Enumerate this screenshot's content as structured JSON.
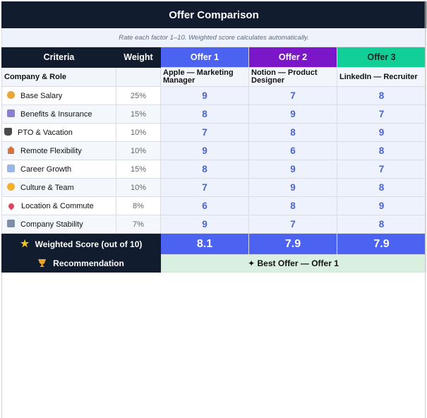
{
  "title": "Offer Comparison",
  "subtitle": "Rate each factor 1–10. Weighted score calculates automatically.",
  "headers": {
    "criteria": "Criteria",
    "weight": "Weight",
    "offers": [
      "Offer 1",
      "Offer 2",
      "Offer 3"
    ]
  },
  "company_role": {
    "label": "Company & Role",
    "values": [
      "Apple — Marketing Manager",
      "Notion — Product Designer",
      "LinkedIn — Recruiter"
    ]
  },
  "factors": [
    {
      "icon": "money-bag-icon",
      "label": "Base Salary",
      "weight": "25%",
      "scores": [
        "9",
        "7",
        "8"
      ]
    },
    {
      "icon": "receipt-icon",
      "label": "Benefits & Insurance",
      "weight": "15%",
      "scores": [
        "8",
        "9",
        "7"
      ]
    },
    {
      "icon": "beach-icon",
      "label": "PTO & Vacation",
      "weight": "10%",
      "scores": [
        "7",
        "8",
        "9"
      ]
    },
    {
      "icon": "house-icon",
      "label": "Remote Flexibility",
      "weight": "10%",
      "scores": [
        "9",
        "6",
        "8"
      ]
    },
    {
      "icon": "chart-up-icon",
      "label": "Career Growth",
      "weight": "15%",
      "scores": [
        "8",
        "9",
        "7"
      ]
    },
    {
      "icon": "handshake-icon",
      "label": "Culture & Team",
      "weight": "10%",
      "scores": [
        "7",
        "9",
        "8"
      ]
    },
    {
      "icon": "pin-icon",
      "label": "Location & Commute",
      "weight": "8%",
      "scores": [
        "6",
        "8",
        "9"
      ]
    },
    {
      "icon": "building-icon",
      "label": "Company Stability",
      "weight": "7%",
      "scores": [
        "9",
        "7",
        "8"
      ]
    }
  ],
  "weighted": {
    "icon": "star-icon",
    "label": "Weighted Score (out of 10)",
    "values": [
      "8.1",
      "7.9",
      "7.9"
    ]
  },
  "recommendation": {
    "icon": "trophy-icon",
    "label": "Recommendation",
    "value": "✦ Best Offer — Offer 1"
  },
  "colors": {
    "header_dark": "#111c2e",
    "offer1": "#4b63f0",
    "offer2": "#7b16c9",
    "offer3": "#12cf98",
    "score_text": "#4b63d6",
    "recommend_bg": "#d9efdf"
  }
}
